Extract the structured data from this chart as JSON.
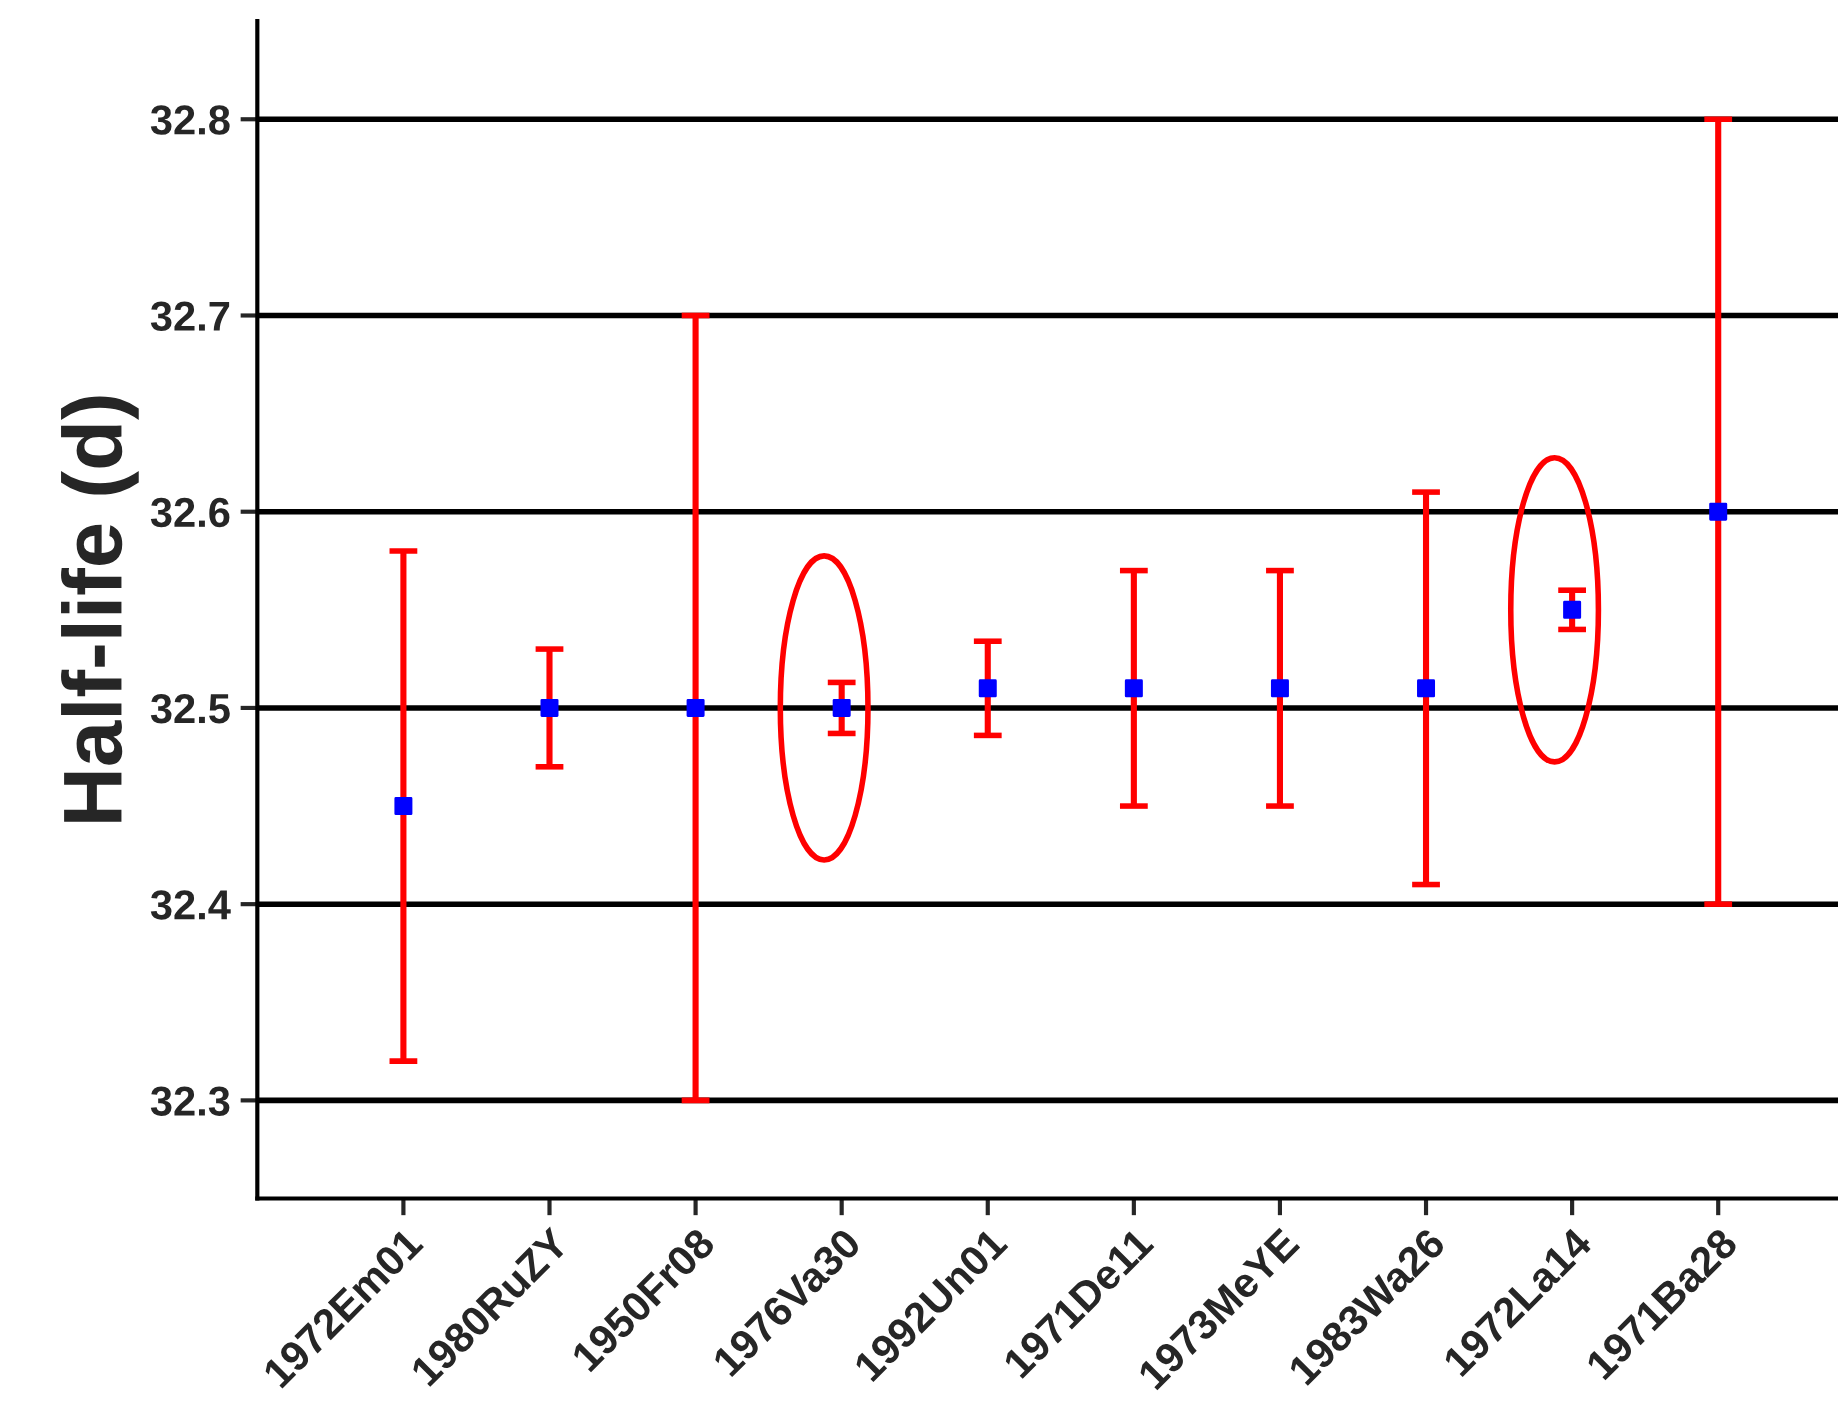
{
  "chart_data": {
    "type": "scatter",
    "ylabel": "Half-life (d)",
    "categories": [
      "1972Em01",
      "1980RuZY",
      "1950Fr08",
      "1976Va30",
      "1992Un01",
      "1971De11",
      "1973MeYE",
      "1983Wa26",
      "1972La14",
      "1971Ba28"
    ],
    "series": [
      {
        "color": "#0000ff",
        "values": [
          32.45,
          32.5,
          32.5,
          32.5,
          32.51,
          32.51,
          32.51,
          32.51,
          32.55,
          32.6
        ],
        "errors": [
          0.13,
          0.03,
          0.2,
          0.013,
          0.024,
          0.06,
          0.06,
          0.1,
          0.01,
          0.2
        ]
      }
    ],
    "ylim": [
      32.25,
      32.85
    ],
    "yticks": [
      32.3,
      32.4,
      32.5,
      32.6,
      32.7,
      32.8
    ],
    "grid": "y",
    "marker": "square",
    "legend": false
  }
}
